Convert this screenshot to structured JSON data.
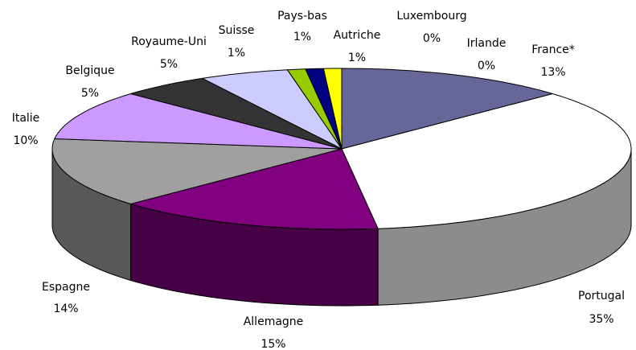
{
  "chart_data": {
    "type": "pie3d",
    "categories": [
      "France*",
      "Portugal",
      "Allemagne",
      "Espagne",
      "Italie",
      "Belgique",
      "Royaume-Uni",
      "Suisse",
      "Pays-bas",
      "Autriche",
      "Luxembourg",
      "Irlande"
    ],
    "values": [
      13,
      35,
      15,
      14,
      10,
      5,
      5,
      1,
      1,
      1,
      0,
      0
    ],
    "value_labels": [
      "13%",
      "35%",
      "15%",
      "14%",
      "10%",
      "5%",
      "5%",
      "1%",
      "1%",
      "1%",
      "0%",
      "0%"
    ],
    "colors": [
      "#666699",
      "#ffffff",
      "#800080",
      "#a0a0a0",
      "#cc99ff",
      "#333333",
      "#ccccff",
      "#99cc00",
      "#000080",
      "#ffff00",
      "#c0c0c0",
      "#3366ff"
    ]
  }
}
